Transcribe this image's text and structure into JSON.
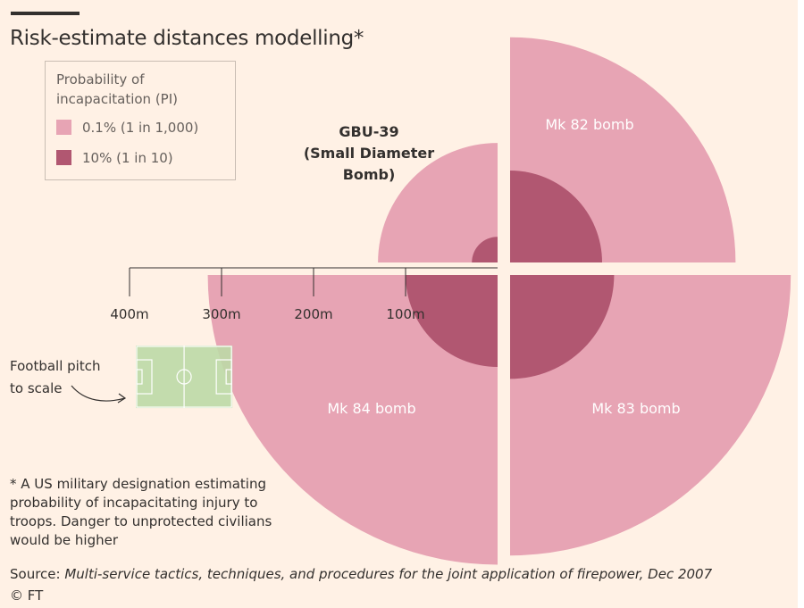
{
  "chart_data": {
    "type": "area",
    "title": "Risk-estimate distances modelling*",
    "scale_unit": "m",
    "scale_ticks": [
      {
        "value": 400,
        "label": "400m"
      },
      {
        "value": 300,
        "label": "300m"
      },
      {
        "value": 200,
        "label": "200m"
      },
      {
        "value": 100,
        "label": "100m"
      }
    ],
    "legend": {
      "title": "Probability of incapacitation (PI)",
      "entries": [
        {
          "key": "pi_01",
          "label": "0.1% (1 in 1,000)",
          "color": "#e7a4b4"
        },
        {
          "key": "pi_10",
          "label": "10% (1 in 10)",
          "color": "#b15771"
        }
      ]
    },
    "series": [
      {
        "name": "GBU-39",
        "label_lines": [
          "GBU-39",
          "(Small Diameter",
          "Bomb)"
        ],
        "quadrant": "top-left",
        "pi_01_radius_m": 130,
        "pi_10_radius_m": 28
      },
      {
        "name": "Mk 82 bomb",
        "label_lines": [
          "Mk 82 bomb"
        ],
        "quadrant": "top-right",
        "pi_01_radius_m": 245,
        "pi_10_radius_m": 100
      },
      {
        "name": "Mk 84 bomb",
        "label_lines": [
          "Mk 84 bomb"
        ],
        "quadrant": "bottom-left",
        "pi_01_radius_m": 315,
        "pi_10_radius_m": 100
      },
      {
        "name": "Mk 83 bomb",
        "label_lines": [
          "Mk 83 bomb"
        ],
        "quadrant": "bottom-right",
        "pi_01_radius_m": 305,
        "pi_10_radius_m": 113
      }
    ]
  },
  "football_pitch": {
    "label_line1": "Football pitch",
    "label_line2": "to scale",
    "length_m": 105,
    "width_m": 68
  },
  "note": "* A US military designation estimating probability of incapacitating injury to troops. Danger to unprotected civilians would be higher",
  "source": {
    "prefix": "Source:",
    "text": "Multi-service tactics, techniques, and procedures for the joint application of firepower, Dec 2007"
  },
  "credit": "© FT",
  "colors": {
    "background": "#fff1e5",
    "light": "#e7a4b4",
    "dark": "#b15771",
    "text": "#33302e",
    "muted": "#66605c",
    "pitch": "#bcd9a6"
  }
}
